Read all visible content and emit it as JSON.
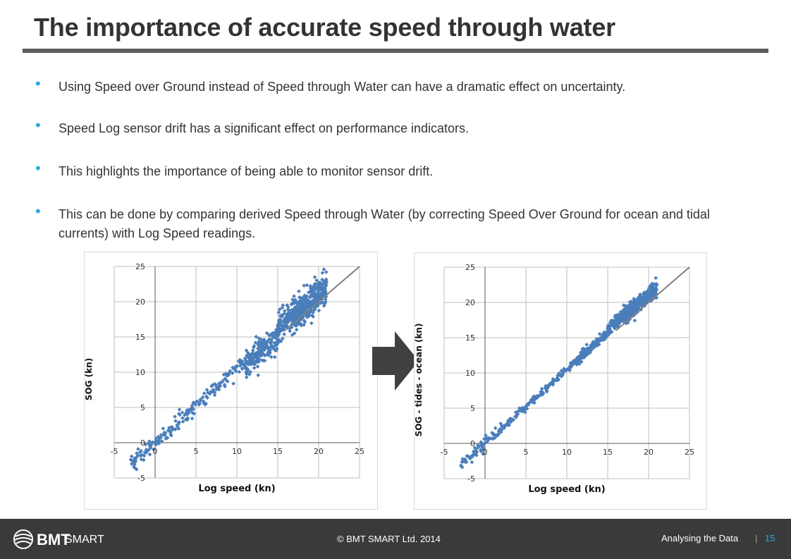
{
  "title": "The importance of accurate speed through water",
  "bullets": [
    "Using Speed over Ground instead of Speed through Water can have a dramatic effect on uncertainty.",
    "Speed Log sensor drift has a significant effect on performance indicators.",
    "This highlights the importance of being able to monitor sensor drift.",
    "This can be done by comparing derived Speed through Water (by correcting Speed Over Ground for ocean and tidal currents) with Log Speed readings."
  ],
  "colors": {
    "points": "#4a7ebb",
    "accent": "#29abe2",
    "diagonal": "#7f7f7f"
  },
  "chart_data": [
    {
      "type": "scatter",
      "xlabel": "Log speed (kn)",
      "ylabel": "SOG (kn)",
      "xlim": [
        -5,
        25
      ],
      "ylim": [
        -5,
        25
      ],
      "xticks": [
        "-5",
        "0",
        "5",
        "10",
        "15",
        "20",
        "25"
      ],
      "yticks": [
        "25",
        "20",
        "15",
        "10",
        "5",
        "0",
        "-5"
      ],
      "grid": true,
      "reference_line": "y = x",
      "clusters": [
        {
          "x_range": [
            -3,
            2
          ],
          "slope": 1.0,
          "spread": 1.0,
          "count": 70
        },
        {
          "x_range": [
            2,
            11
          ],
          "slope": 1.05,
          "spread": 0.8,
          "count": 120
        },
        {
          "x_range": [
            11,
            15
          ],
          "slope": 1.0,
          "spread": 1.5,
          "count": 180
        },
        {
          "x_range": [
            15,
            18
          ],
          "slope": 1.08,
          "spread": 1.7,
          "count": 160
        },
        {
          "x_range": [
            17,
            21
          ],
          "slope": 1.05,
          "spread": 1.8,
          "count": 320
        }
      ]
    },
    {
      "type": "scatter",
      "xlabel": "Log speed (kn)",
      "ylabel": "SOG - tides - ocean (kn)",
      "xlim": [
        -5,
        25
      ],
      "ylim": [
        -5,
        25
      ],
      "xticks": [
        "-5",
        "0",
        "5",
        "10",
        "15",
        "20",
        "25"
      ],
      "yticks": [
        "25",
        "20",
        "15",
        "10",
        "5",
        "0",
        "-5"
      ],
      "grid": true,
      "reference_line": "y = x",
      "clusters": [
        {
          "x_range": [
            -3,
            2
          ],
          "slope": 1.0,
          "spread": 0.7,
          "count": 80
        },
        {
          "x_range": [
            2,
            11
          ],
          "slope": 1.05,
          "spread": 0.45,
          "count": 140
        },
        {
          "x_range": [
            11,
            15
          ],
          "slope": 1.05,
          "spread": 0.6,
          "count": 180
        },
        {
          "x_range": [
            15,
            18
          ],
          "slope": 1.08,
          "spread": 0.8,
          "count": 160
        },
        {
          "x_range": [
            17,
            21
          ],
          "slope": 1.05,
          "spread": 0.95,
          "count": 320
        }
      ]
    }
  ],
  "footer": {
    "logo_main": "BMT",
    "logo_sub": "SMART",
    "copyright": "© BMT SMART Ltd. 2014",
    "section": "Analysing the Data",
    "separator": "|",
    "page_number": "15"
  }
}
